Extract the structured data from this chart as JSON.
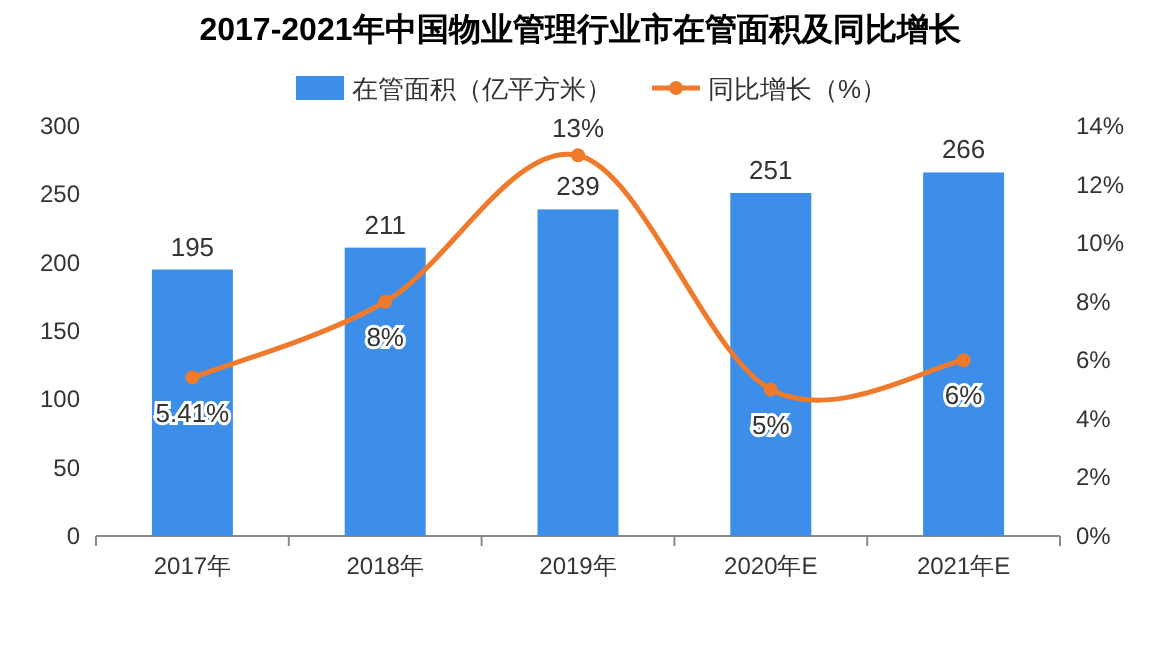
{
  "chart_data": {
    "type": "bar",
    "title": "2017-2021年中国物业管理行业市在管面积及同比增长",
    "categories": [
      "2017年",
      "2018年",
      "2019年",
      "2020年E",
      "2021年E"
    ],
    "series": [
      {
        "name": "在管面积（亿平方米）",
        "color": "#3c8ee8",
        "values": [
          195,
          211,
          239,
          251,
          266
        ],
        "value_labels": [
          "195",
          "211",
          "239",
          "251",
          "266"
        ]
      },
      {
        "name": "同比增长（%）",
        "type": "line",
        "axis": "y2",
        "color": "#f07a2c",
        "marker": "circle",
        "values": [
          5.41,
          8,
          13,
          5,
          6
        ],
        "value_labels": [
          "5.41%",
          "8%",
          "13%",
          "5%",
          "6%"
        ]
      }
    ],
    "ylim": [
      0,
      300
    ],
    "yticks": [
      0,
      50,
      100,
      150,
      200,
      250,
      300
    ],
    "y2lim": [
      0,
      14
    ],
    "y2ticks": [
      {
        "value": 0,
        "label": "0%"
      },
      {
        "value": 2,
        "label": "2%"
      },
      {
        "value": 4,
        "label": "4%"
      },
      {
        "value": 6,
        "label": "6%"
      },
      {
        "value": 8,
        "label": "8%"
      },
      {
        "value": 10,
        "label": "10%"
      },
      {
        "value": 12,
        "label": "12%"
      },
      {
        "value": 14,
        "label": "14%"
      }
    ],
    "legend": "top",
    "grid": false
  }
}
